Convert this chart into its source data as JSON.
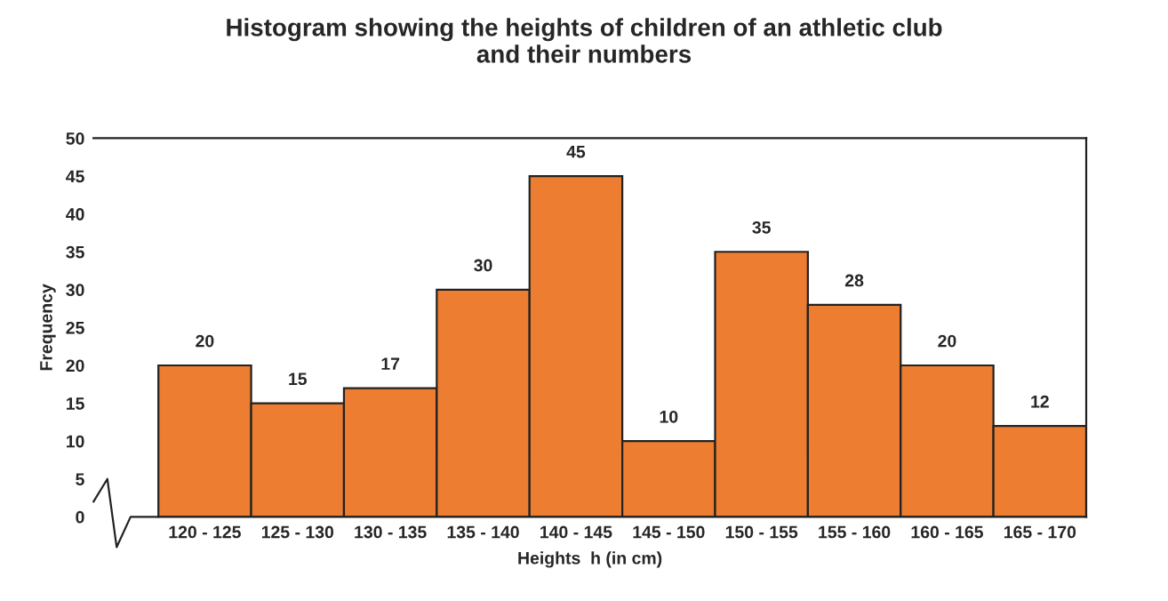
{
  "chart_data": {
    "type": "bar",
    "title": "Histogram showing the heights of children of an athletic club\nand their numbers",
    "xlabel": "Heights  h (in cm)",
    "ylabel": "Frequency",
    "categories": [
      "120 - 125",
      "125 - 130",
      "130 - 135",
      "135 - 140",
      "140 - 145",
      "145 - 150",
      "150 - 155",
      "155 - 160",
      "160 - 165",
      "165 - 170"
    ],
    "values": [
      20,
      15,
      17,
      30,
      45,
      10,
      35,
      28,
      20,
      12
    ],
    "color": "#ed7d31",
    "ylim": [
      0,
      50
    ],
    "yticks": [
      0,
      5,
      10,
      15,
      20,
      25,
      30,
      35,
      40,
      45,
      50
    ],
    "data_labels": true,
    "grid": false
  }
}
